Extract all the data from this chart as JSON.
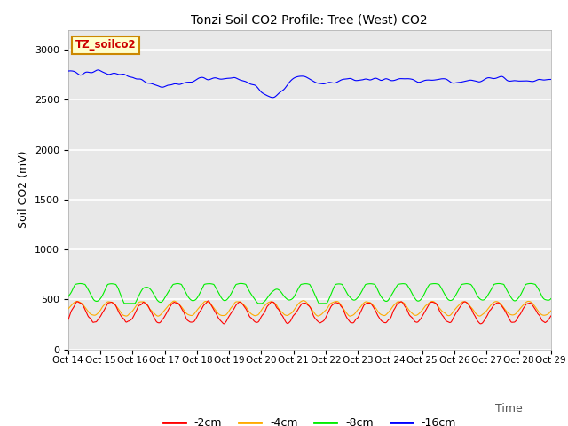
{
  "title": "Tonzi Soil CO2 Profile: Tree (West) CO2",
  "ylabel": "Soil CO2 (mV)",
  "xlabel": "Time",
  "xlabel_ha": "right",
  "xlim": [
    0,
    360
  ],
  "ylim": [
    0,
    3200
  ],
  "yticks": [
    0,
    500,
    1000,
    1500,
    2000,
    2500,
    3000
  ],
  "xtick_labels": [
    "Oct 14",
    "Oct 15",
    "Oct 16",
    "Oct 17",
    "Oct 18",
    "Oct 19",
    "Oct 20",
    "Oct 21",
    "Oct 22",
    "Oct 23",
    "Oct 24",
    "Oct 25",
    "Oct 26",
    "Oct 27",
    "Oct 28",
    "Oct 29"
  ],
  "num_points": 1440,
  "colors": {
    "neg2cm": "#ff0000",
    "neg4cm": "#ffaa00",
    "neg8cm": "#00ee00",
    "neg16cm": "#0000ff"
  },
  "legend_labels": [
    "-2cm",
    "-4cm",
    "-8cm",
    "-16cm"
  ],
  "label_box_text": "TZ_soilco2",
  "label_box_facecolor": "#ffffcc",
  "label_box_edgecolor": "#cc8800",
  "label_box_textcolor": "#cc0000",
  "bg_color": "#e8e8e8",
  "grid_color": "#ffffff"
}
